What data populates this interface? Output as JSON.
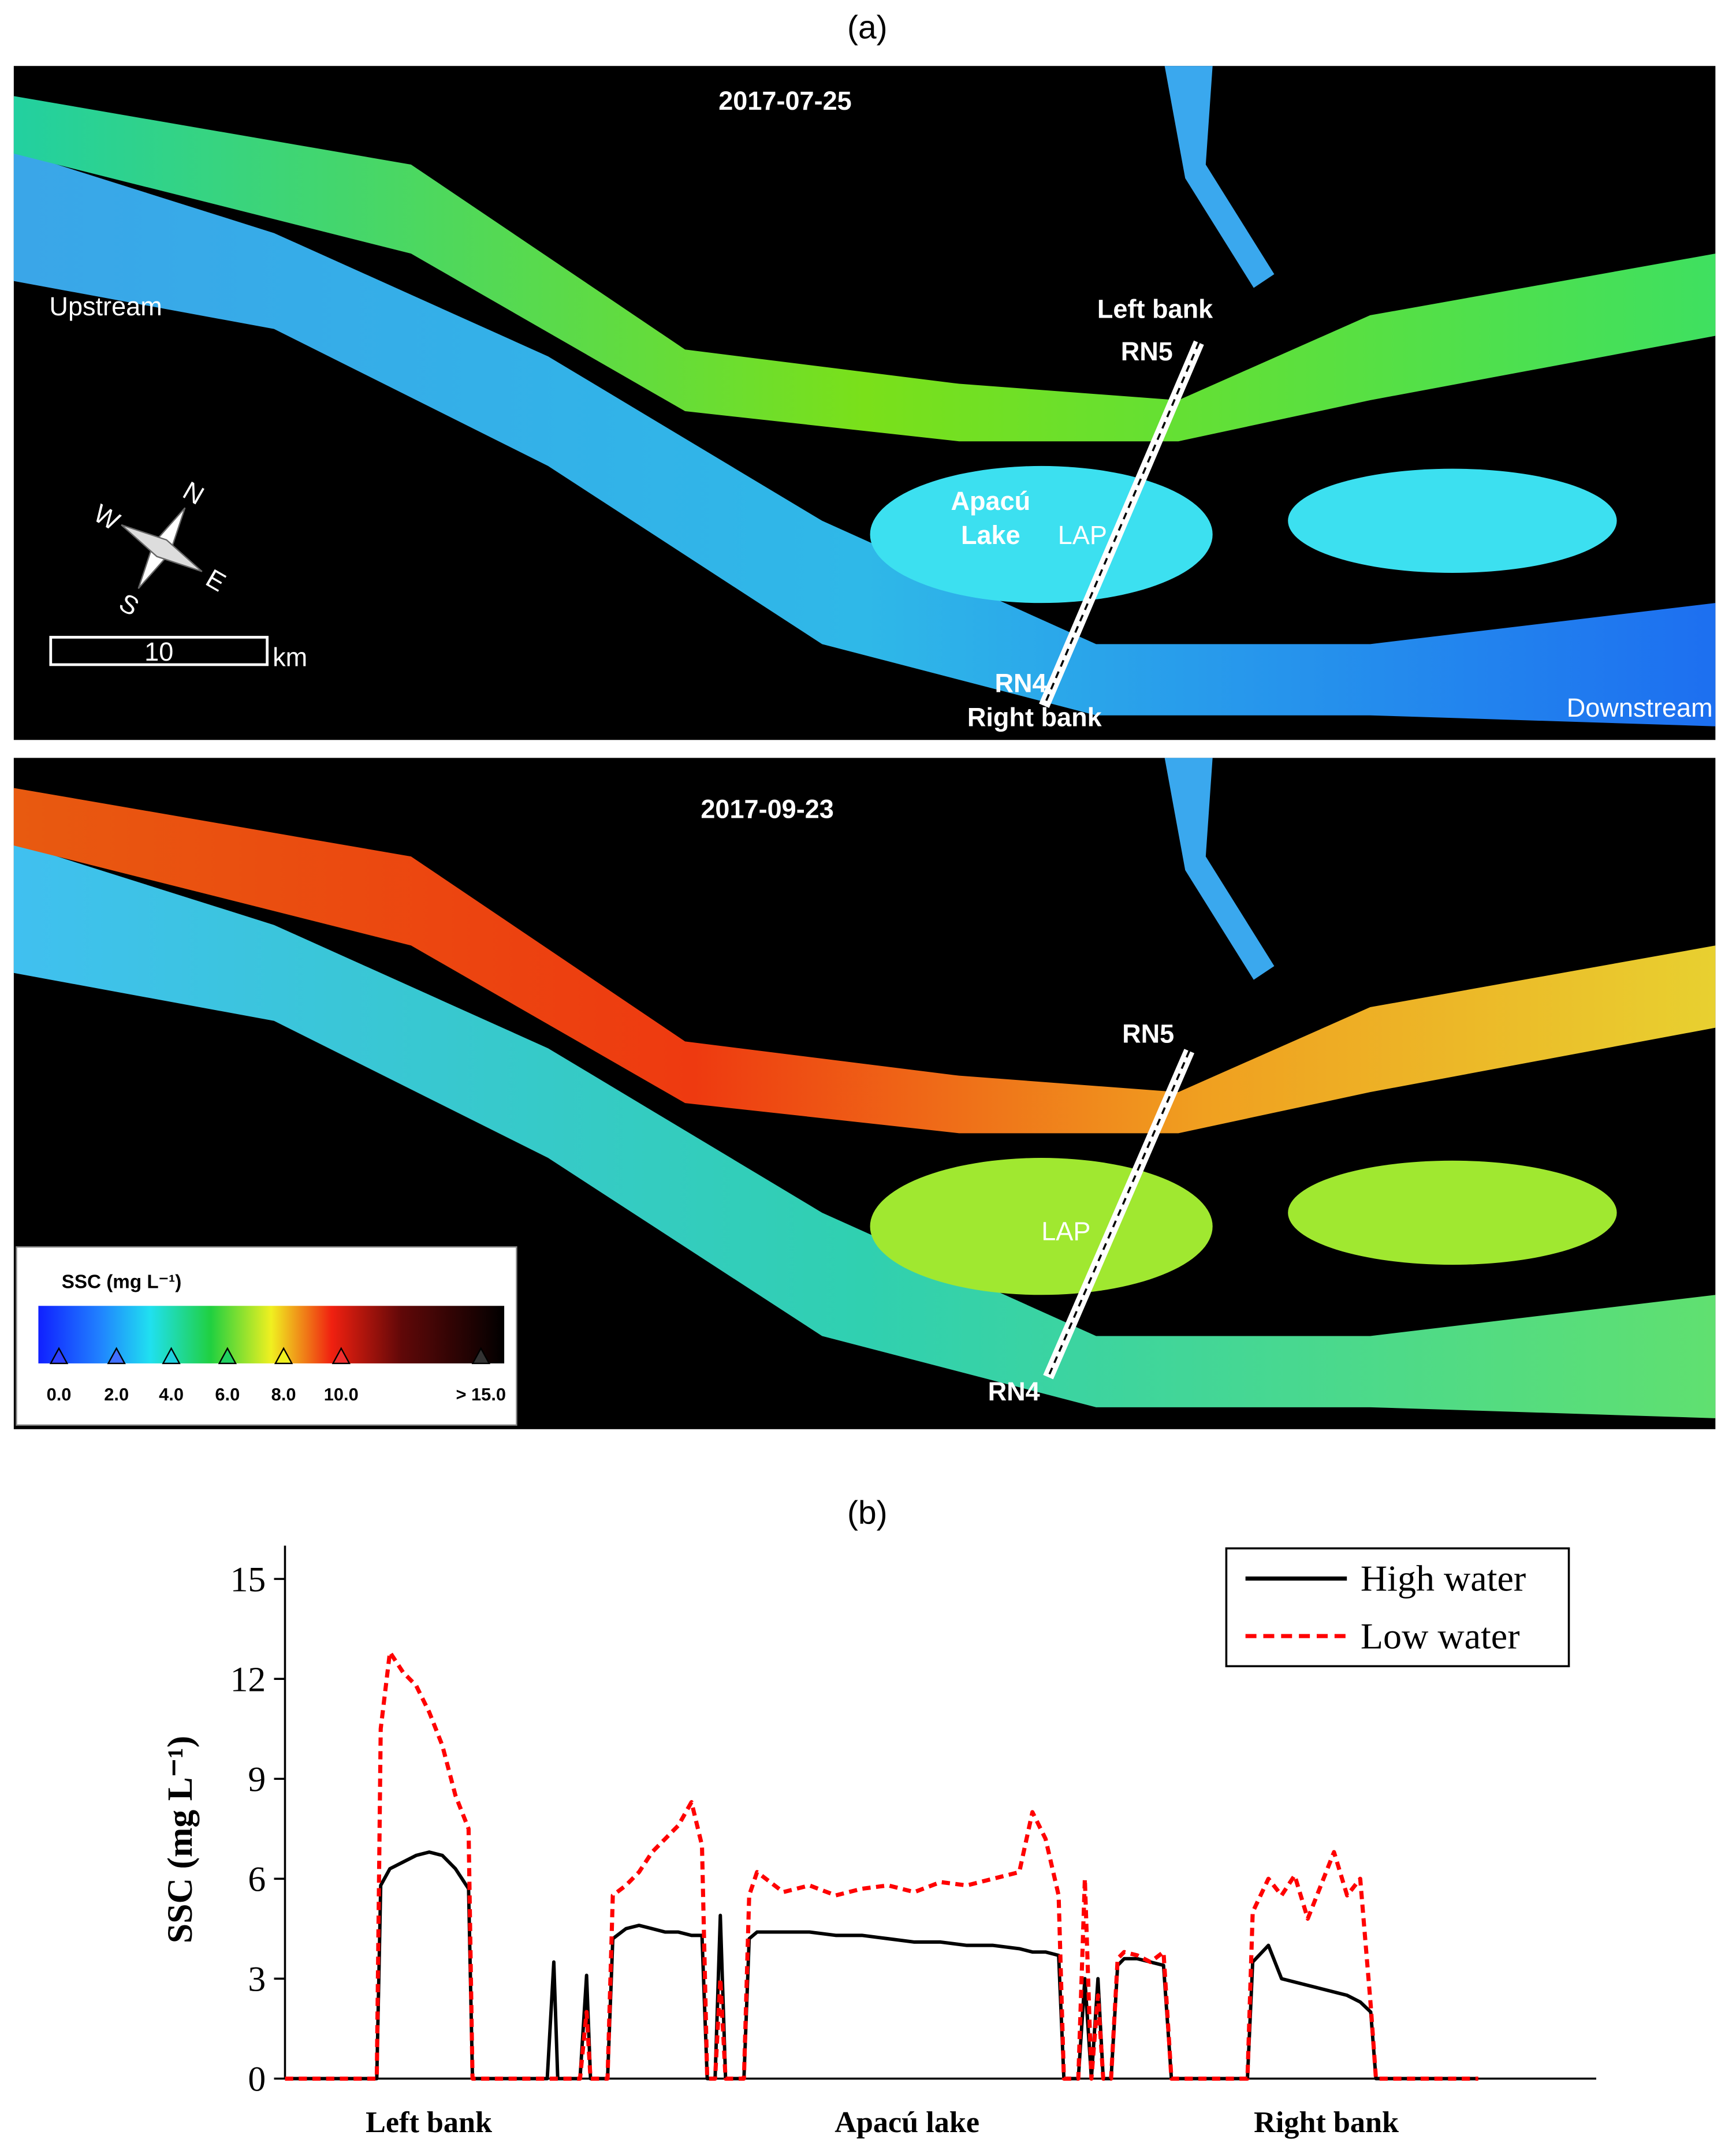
{
  "figure": {
    "label_a": "(a)",
    "label_b": "(b)",
    "panels": [
      {
        "date": "2017-07-25",
        "upstream": "Upstream",
        "downstream": "Downstream",
        "left_bank": "Left bank",
        "right_bank": "Right bank",
        "rn5": "RN5",
        "rn4": "RN4",
        "lake_line1": "Apacú",
        "lake_line2": "Lake",
        "lap": "LAP"
      },
      {
        "date": "2017-09-23",
        "rn5": "RN5",
        "rn4": "RN4",
        "lap": "LAP"
      }
    ],
    "compass": [
      "N",
      "E",
      "S",
      "W"
    ],
    "scale_bar": {
      "label": "10",
      "unit": "km"
    },
    "map_legend": {
      "title": "SSC (mg L⁻¹)",
      "ticks": [
        "0.0",
        "2.0",
        "4.0",
        "6.0",
        "8.0",
        "10.0",
        "> 15.0"
      ]
    }
  },
  "chart_data": {
    "type": "line",
    "y_label": "SSC (mg L⁻¹)",
    "region_labels": [
      "Left bank",
      "Apacú lake",
      "Right bank"
    ],
    "xlim": [
      0,
      100
    ],
    "ylim": [
      0,
      16
    ],
    "yticks": [
      0,
      3,
      6,
      9,
      12,
      15
    ],
    "legend": "top-right",
    "x": [
      0,
      7,
      7.3,
      8,
      9,
      10,
      11,
      12,
      13,
      14,
      14.3,
      20,
      20.5,
      20.8,
      21,
      22.5,
      23,
      23.3,
      24,
      24.6,
      25,
      26,
      27,
      28,
      29,
      30,
      31,
      31.8,
      32.2,
      32.8,
      33.2,
      33.6,
      35,
      35.4,
      36,
      38,
      40,
      42,
      44,
      46,
      48,
      50,
      52,
      54,
      56,
      57,
      58,
      59,
      59.4,
      60.5,
      61,
      61.5,
      62,
      62.4,
      63,
      63.5,
      64,
      65,
      66,
      67,
      67.6,
      68,
      73.4,
      73.8,
      75,
      76,
      77,
      78,
      79,
      80,
      81,
      82,
      82.8,
      83.2,
      91
    ],
    "series": [
      {
        "name": "High water",
        "color": "#000000",
        "dash": "solid",
        "values": [
          0,
          0,
          5.8,
          6.3,
          6.5,
          6.7,
          6.8,
          6.7,
          6.3,
          5.7,
          0,
          0,
          3.5,
          0,
          0,
          0,
          3.1,
          0,
          0,
          0,
          4.2,
          4.5,
          4.6,
          4.5,
          4.4,
          4.4,
          4.3,
          4.3,
          0,
          0,
          4.9,
          0,
          0,
          4.2,
          4.4,
          4.4,
          4.4,
          4.3,
          4.3,
          4.2,
          4.1,
          4.1,
          4.0,
          4.0,
          3.9,
          3.8,
          3.8,
          3.7,
          0,
          0,
          3.0,
          0,
          3.0,
          0,
          0,
          3.4,
          3.6,
          3.6,
          3.5,
          3.4,
          0,
          0,
          0,
          3.5,
          4.0,
          3.0,
          2.9,
          2.8,
          2.7,
          2.6,
          2.5,
          2.3,
          2.0,
          0,
          0
        ]
      },
      {
        "name": "Low water",
        "color": "#ff0000",
        "dash": "dashed",
        "values": [
          0,
          0,
          10.5,
          12.8,
          12.2,
          11.8,
          11.0,
          10.0,
          8.5,
          7.5,
          0,
          0,
          0,
          0,
          0,
          0,
          2.0,
          0,
          0,
          0,
          5.5,
          5.8,
          6.2,
          6.8,
          7.2,
          7.6,
          8.3,
          7.0,
          0,
          0,
          3.0,
          0,
          0,
          5.5,
          6.2,
          5.6,
          5.8,
          5.5,
          5.7,
          5.8,
          5.6,
          5.9,
          5.8,
          6.0,
          6.2,
          8.0,
          7.2,
          5.5,
          0,
          0,
          6.0,
          0,
          2.5,
          0,
          0,
          3.6,
          3.8,
          3.7,
          3.5,
          3.8,
          0,
          0,
          0,
          5.0,
          6.0,
          5.5,
          6.1,
          4.8,
          5.8,
          6.8,
          5.5,
          6.0,
          2.2,
          0,
          0
        ]
      }
    ]
  }
}
